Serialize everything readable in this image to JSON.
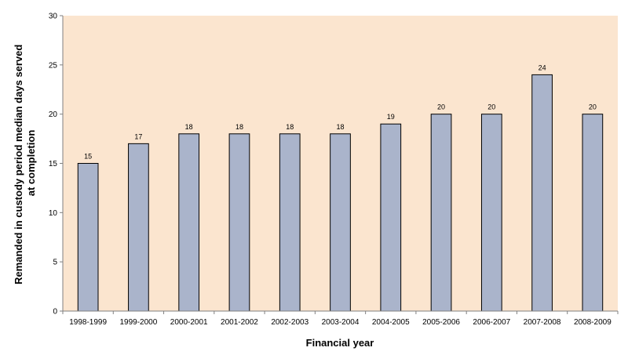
{
  "chart_data": {
    "type": "bar",
    "title": "",
    "xlabel": "Financial year",
    "ylabel_lines": [
      "Remanded in custody period median days served",
      "at completion"
    ],
    "categories": [
      "1998-1999",
      "1999-2000",
      "2000-2001",
      "2001-2002",
      "2002-2003",
      "2003-2004",
      "2004-2005",
      "2005-2006",
      "2006-2007",
      "2007-2008",
      "2008-2009"
    ],
    "values": [
      15,
      17,
      18,
      18,
      18,
      18,
      19,
      20,
      20,
      24,
      20
    ],
    "ylim": [
      0,
      30
    ],
    "yticks": [
      0,
      5,
      10,
      15,
      20,
      25,
      30
    ],
    "grid": false,
    "data_labels": true,
    "colors": {
      "plot_background": "#FBE5CF",
      "bar_fill": "#AAB4CB",
      "bar_stroke": "#000000",
      "axis": "#808080"
    }
  }
}
